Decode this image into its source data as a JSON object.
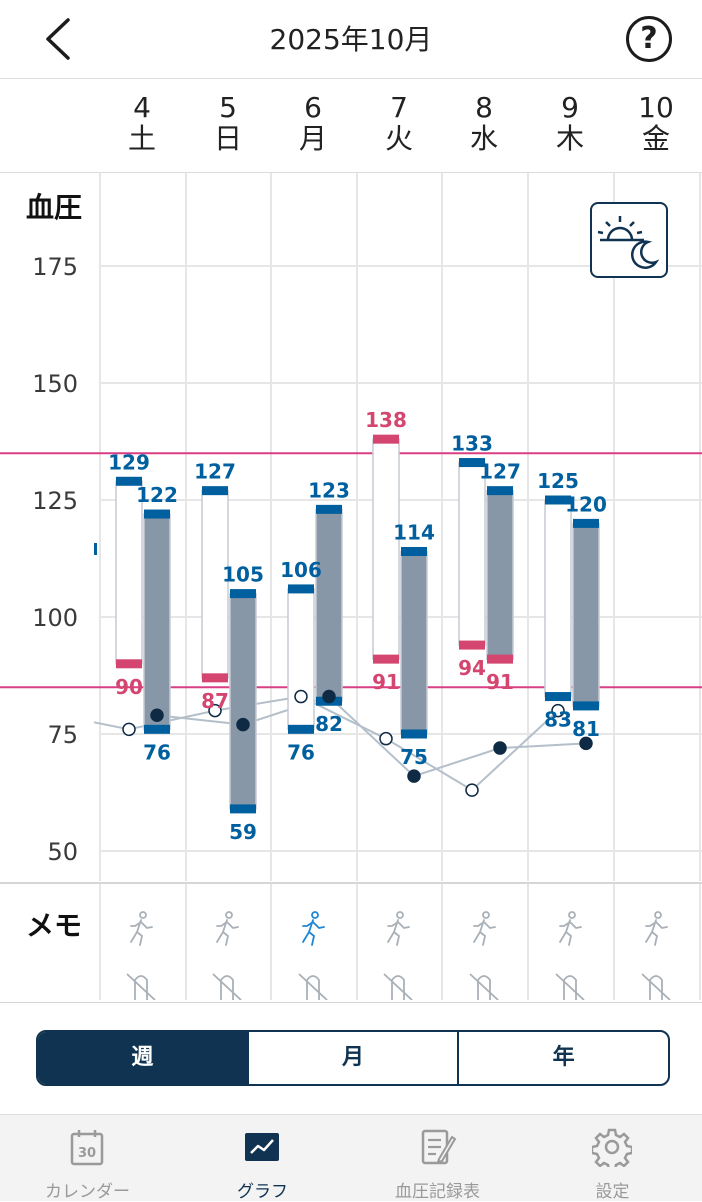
{
  "header": {
    "title": "2025年10月",
    "help_label": "?"
  },
  "days": [
    {
      "date": "4",
      "weekday": "土"
    },
    {
      "date": "5",
      "weekday": "日"
    },
    {
      "date": "6",
      "weekday": "月"
    },
    {
      "date": "7",
      "weekday": "火"
    },
    {
      "date": "8",
      "weekday": "水"
    },
    {
      "date": "9",
      "weekday": "木"
    },
    {
      "date": "10",
      "weekday": "金"
    }
  ],
  "chart": {
    "title": "血圧"
  },
  "chart_data": {
    "type": "bar",
    "title": "血圧",
    "categories": [
      "4",
      "5",
      "6",
      "7",
      "8",
      "9",
      "10"
    ],
    "ylim": [
      48,
      180
    ],
    "yticks": [
      50,
      75,
      100,
      125,
      150,
      175
    ],
    "grid": true,
    "thresholds": [
      135,
      85
    ],
    "series": [
      {
        "values": [
          [
            129,
            90
          ],
          [
            127,
            87
          ],
          [
            106,
            76
          ],
          [
            138,
            91
          ],
          [
            133,
            94
          ],
          [
            125,
            83
          ],
          null
        ]
      },
      {
        "values": [
          [
            122,
            76
          ],
          [
            105,
            59
          ],
          [
            123,
            82
          ],
          [
            114,
            75
          ],
          [
            127,
            91
          ],
          [
            120,
            81
          ],
          null
        ]
      }
    ],
    "line_series": [
      {
        "values": [
          76,
          80,
          83,
          74,
          63,
          80,
          null
        ]
      },
      {
        "values": [
          79,
          77,
          83,
          66,
          72,
          73,
          null
        ]
      }
    ],
    "labels": [
      [
        "129",
        "90",
        "122",
        "76"
      ],
      [
        "127",
        "87",
        "105",
        "59"
      ],
      [
        "106",
        "76",
        "123",
        "82"
      ],
      [
        "138",
        "91",
        "114",
        "75"
      ],
      [
        "133",
        "94",
        "127",
        "91"
      ],
      [
        "125",
        "83",
        "120",
        "81"
      ]
    ],
    "colors": {
      "high": "#d4456f",
      "normal": "#005f9e",
      "evening_fill": "#8797a7",
      "line": "#b4bfca",
      "threshold": "#d93f85",
      "grid": "#e6e6e6"
    }
  },
  "memo": {
    "label": "メモ",
    "active_index": 2
  },
  "segmented": {
    "week": "週",
    "month": "月",
    "year": "年"
  },
  "nav": [
    {
      "label": "カレンダー",
      "icon": "calendar-icon",
      "badge": "30"
    },
    {
      "label": "グラフ",
      "icon": "graph-icon"
    },
    {
      "label": "血圧記録表",
      "icon": "record-sheet-icon"
    },
    {
      "label": "設定",
      "icon": "settings-icon"
    }
  ]
}
